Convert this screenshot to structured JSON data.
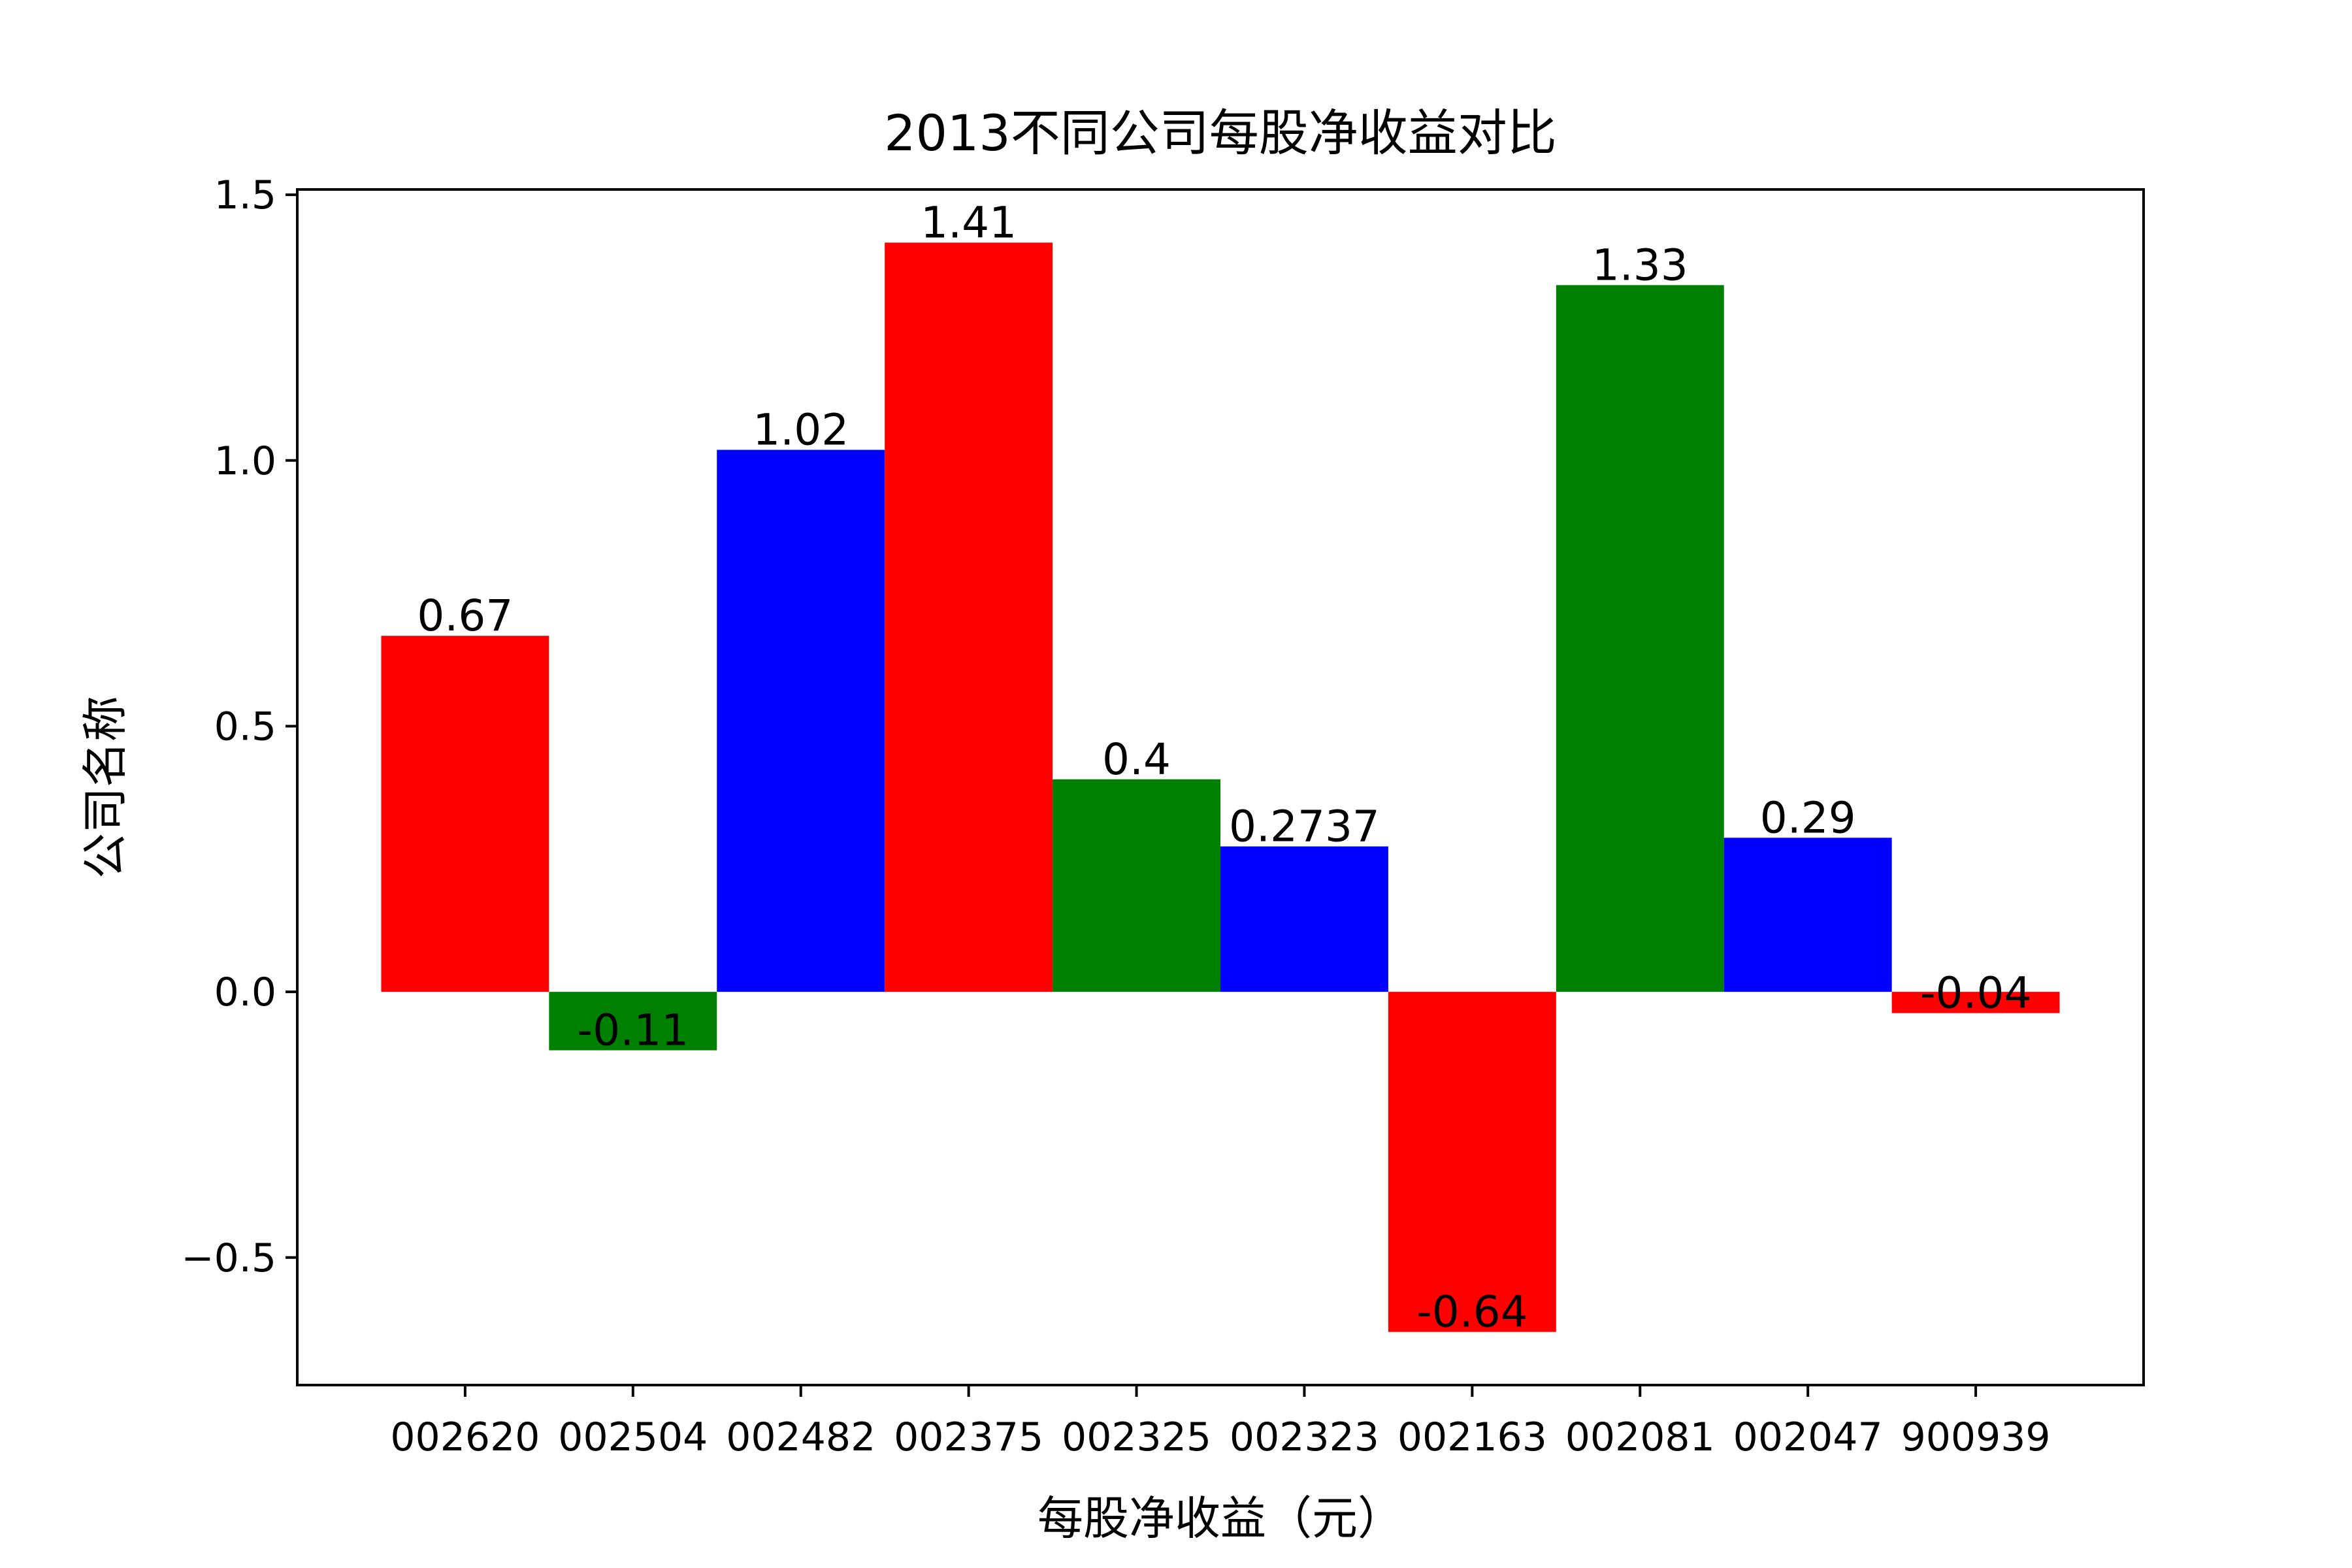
{
  "chart_data": {
    "type": "bar",
    "title": "2013不同公司每股净收益对比",
    "xlabel": "每股净收益（元）",
    "ylabel": "公司名称",
    "categories": [
      "002620",
      "002504",
      "002482",
      "002375",
      "002325",
      "002323",
      "002163",
      "002081",
      "002047",
      "900939"
    ],
    "values": [
      0.67,
      -0.11,
      1.02,
      1.41,
      0.4,
      0.2737,
      -0.64,
      1.33,
      0.29,
      -0.04
    ],
    "value_labels": [
      "0.67",
      "-0.11",
      "1.02",
      "1.41",
      "0.4",
      "0.2737",
      "-0.64",
      "1.33",
      "0.29",
      "-0.04"
    ],
    "colors": [
      "#ff0000",
      "#008000",
      "#0000ff",
      "#ff0000",
      "#008000",
      "#0000ff",
      "#ff0000",
      "#008000",
      "#0000ff",
      "#ff0000"
    ],
    "yticks": [
      -0.5,
      0.0,
      0.5,
      1.0,
      1.5
    ],
    "ytick_labels": [
      "−0.5",
      "0.0",
      "0.5",
      "1.0",
      "1.5"
    ],
    "ylim": [
      -0.74,
      1.51
    ],
    "grid": false,
    "legend": "none"
  }
}
